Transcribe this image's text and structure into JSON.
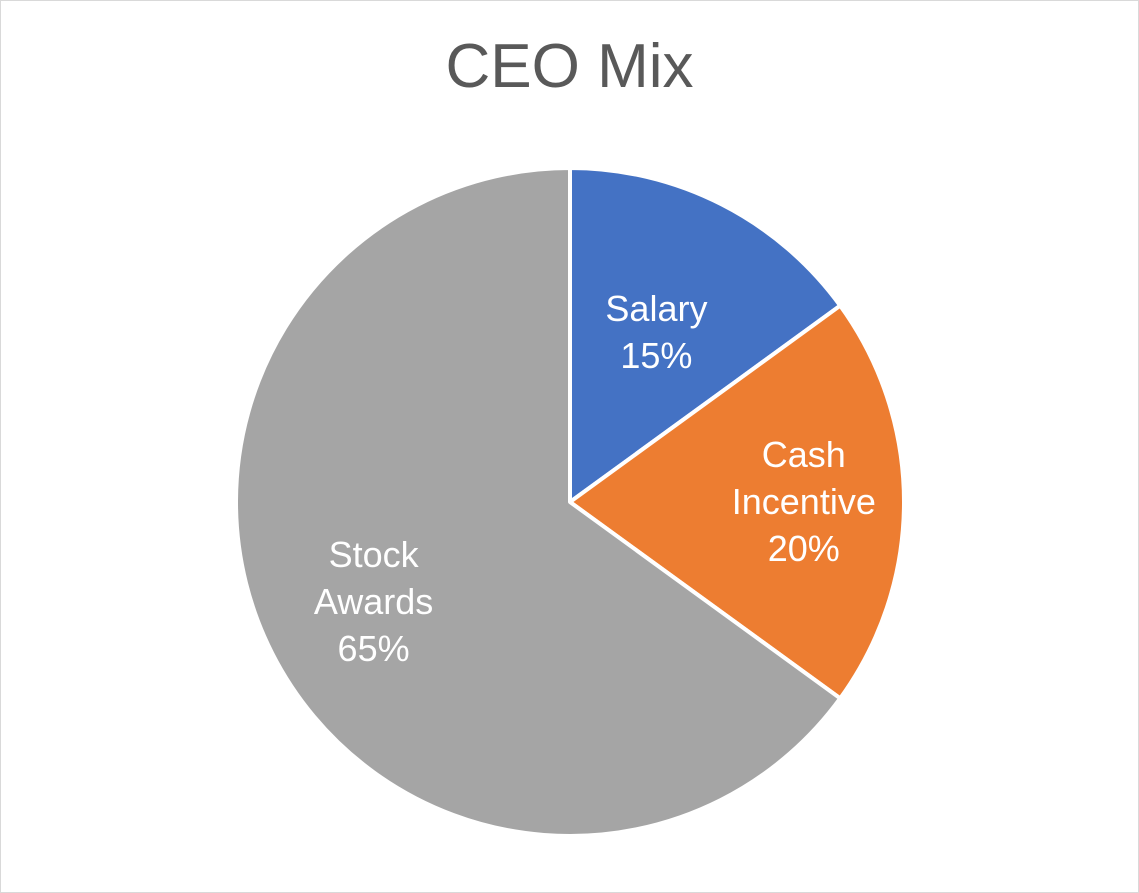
{
  "chart_data": {
    "type": "pie",
    "title": "CEO Mix",
    "slices": [
      {
        "label_lines": [
          "Salary"
        ],
        "percent_label": "15%",
        "value": 15,
        "color": "#4472c4"
      },
      {
        "label_lines": [
          "Cash",
          "Incentive"
        ],
        "percent_label": "20%",
        "value": 20,
        "color": "#ed7d31"
      },
      {
        "label_lines": [
          "Stock",
          "Awards"
        ],
        "percent_label": "65%",
        "value": 65,
        "color": "#a5a5a5"
      }
    ],
    "legend": "none"
  }
}
